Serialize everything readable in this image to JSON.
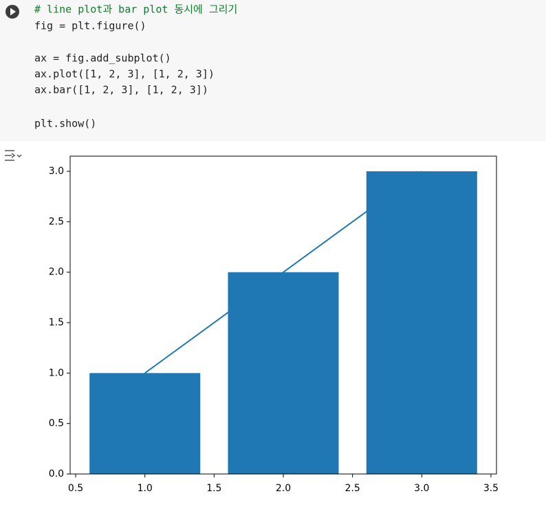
{
  "code": {
    "lines": [
      "# line plot과 bar plot 동시에 그리기",
      "fig = plt.figure()",
      "ax = fig.add_subplot()",
      "ax.plot([1, 2, 3], [1, 2, 3])",
      "ax.bar([1, 2, 3], [1, 2, 3])",
      "plt.show()"
    ]
  },
  "chart_data": {
    "type": "combo",
    "series": [
      {
        "type": "line",
        "x": [
          1,
          2,
          3
        ],
        "values": [
          1,
          2,
          3
        ],
        "color": "#1f77b4"
      },
      {
        "type": "bar",
        "x": [
          1,
          2,
          3
        ],
        "values": [
          1,
          2,
          3
        ],
        "color": "#1f77b4"
      }
    ],
    "xlim": [
      0.46,
      3.54
    ],
    "xticks": [
      0.5,
      {
        "value": 1,
        "label": "1.0"
      },
      1.5,
      {
        "value": 2,
        "label": "2.0"
      },
      2.5,
      {
        "value": 3,
        "label": "3.0"
      },
      3.5
    ],
    "ylim": [
      0,
      3.15
    ],
    "yticks": [
      {
        "value": 0,
        "label": "0.0"
      },
      0.5,
      {
        "value": 1,
        "label": "1.0"
      },
      1.5,
      {
        "value": 2,
        "label": "2.0"
      },
      2.5,
      {
        "value": 3,
        "label": "3.0"
      }
    ]
  }
}
